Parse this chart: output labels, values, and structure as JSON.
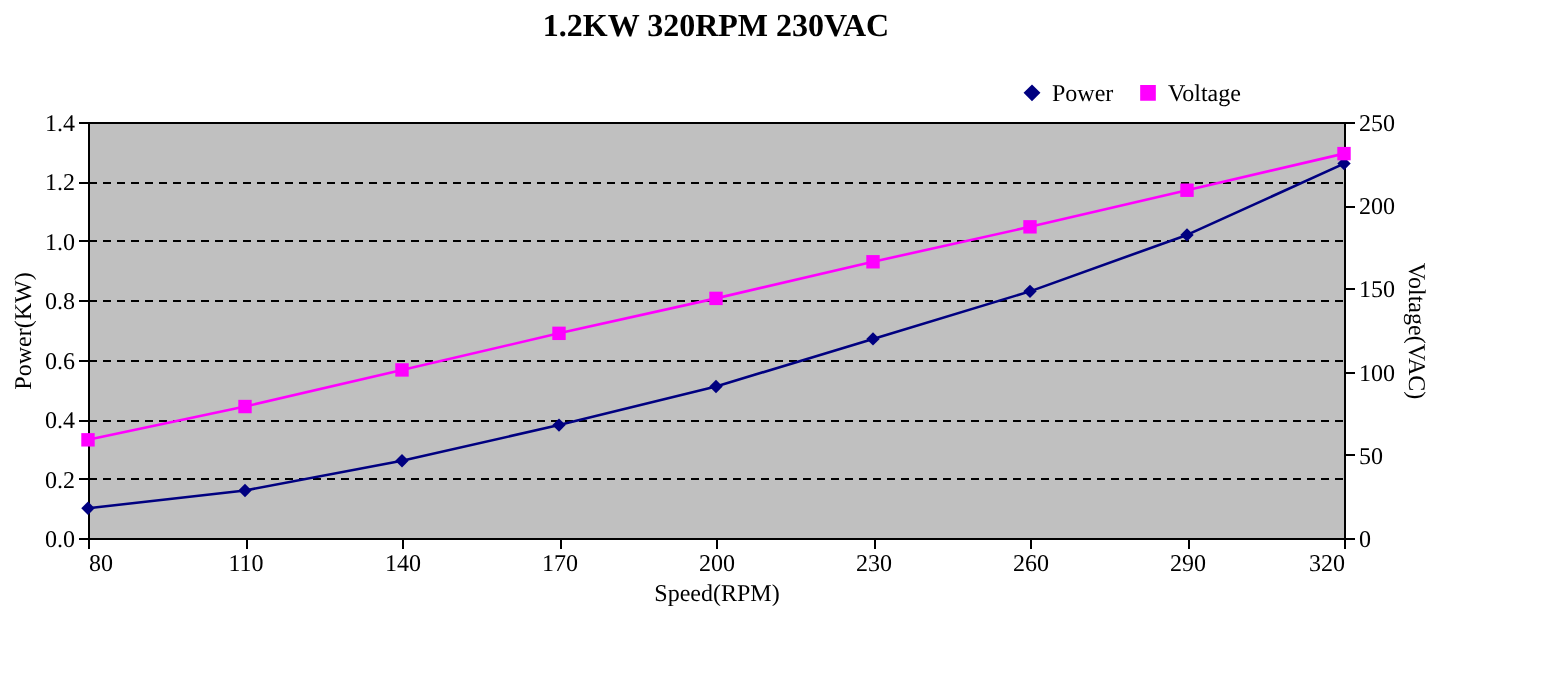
{
  "chart_data": {
    "type": "line",
    "title": "1.2KW 320RPM 230VAC",
    "xlabel": "Speed(RPM)",
    "ylabel": "Power(KW)",
    "y2label": "Voltage(VAC)",
    "x": [
      80,
      110,
      140,
      170,
      200,
      230,
      260,
      290,
      320
    ],
    "series": [
      {
        "name": "Power",
        "color": "#000080",
        "marker": "diamond",
        "values": [
          0.1,
          0.16,
          0.26,
          0.38,
          0.51,
          0.67,
          0.83,
          1.02,
          1.26
        ]
      },
      {
        "name": "Voltage",
        "color": "#ff00ff",
        "marker": "square",
        "axis": "y2",
        "values": [
          59,
          79,
          101,
          123,
          144,
          166,
          187,
          209,
          231
        ]
      }
    ],
    "xlim": [
      80,
      320
    ],
    "xticks": [
      80,
      110,
      140,
      170,
      200,
      230,
      260,
      290,
      320
    ],
    "ylim": [
      0,
      1.4
    ],
    "yticks": [
      {
        "value": 0,
        "label": "0.0"
      },
      0.2,
      0.4,
      0.6,
      0.8,
      {
        "value": 1,
        "label": "1.0"
      },
      1.2,
      1.4
    ],
    "y2lim": [
      0,
      250
    ],
    "y2ticks": [
      0,
      50,
      100,
      150,
      200,
      250
    ],
    "grid": "y",
    "legend": "top right",
    "line_style": "solid"
  }
}
